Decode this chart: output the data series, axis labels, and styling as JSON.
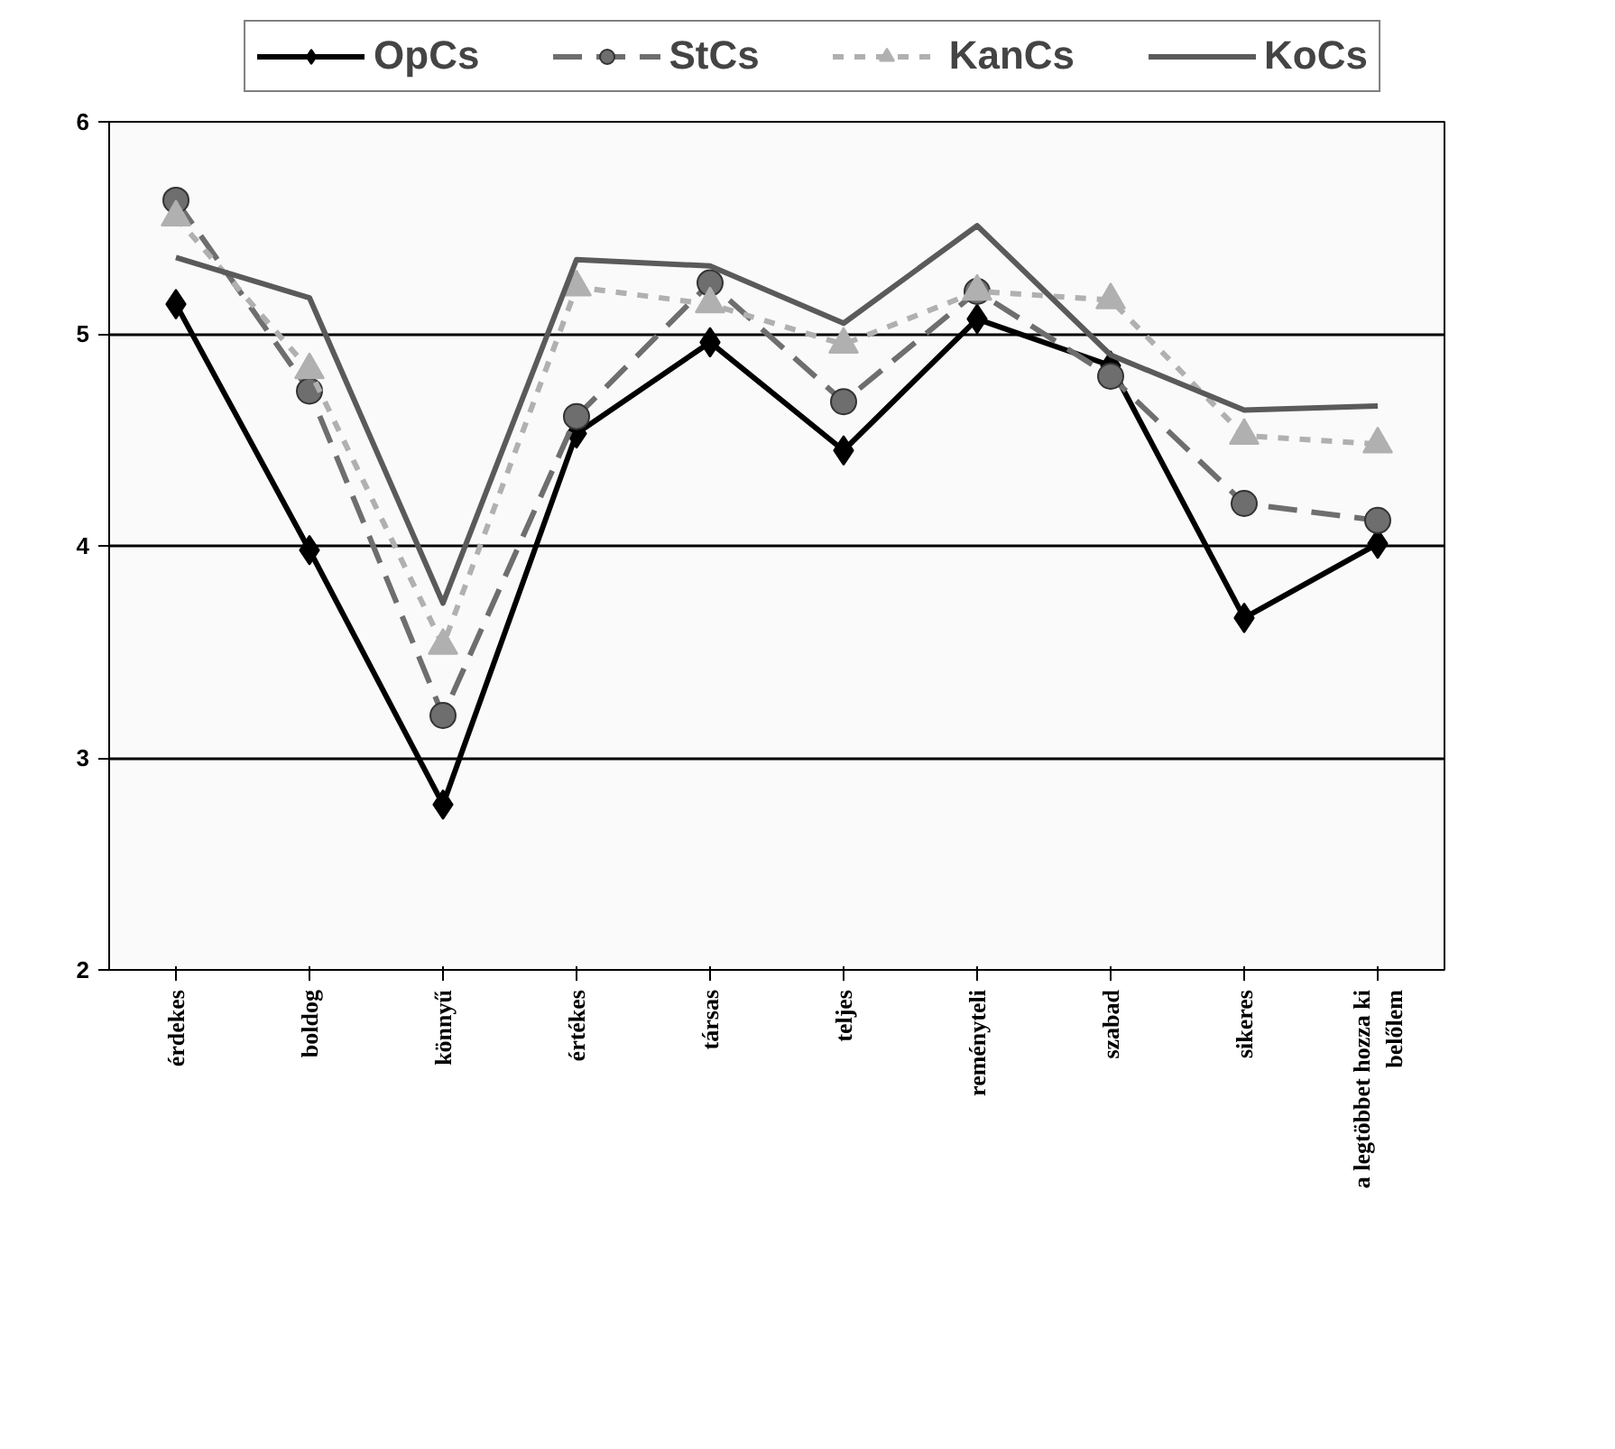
{
  "chart_data": {
    "type": "line",
    "categories": [
      "érdekes",
      "boldog",
      "könnyű",
      "értékes",
      "társas",
      "teljes",
      "reményteli",
      "szabad",
      "sikeres",
      "a legtöbbet hozza ki belőlem"
    ],
    "ylim": [
      2,
      6
    ],
    "yticks": [
      2,
      3,
      4,
      5,
      6
    ],
    "grid": "y",
    "legend": "top",
    "series": [
      {
        "name": "OpCs",
        "color": "#000000",
        "marker": "diamond",
        "line_style": "solid",
        "values": [
          5.14,
          3.98,
          2.78,
          4.53,
          4.96,
          4.45,
          5.07,
          4.85,
          3.66,
          4.01
        ]
      },
      {
        "name": "StCs",
        "color": "#6e6e6e",
        "marker": "circle",
        "line_style": "dashed",
        "values": [
          5.63,
          4.73,
          3.2,
          4.61,
          5.24,
          4.68,
          5.2,
          4.8,
          4.2,
          4.12
        ]
      },
      {
        "name": "KanCs",
        "color": "#b0b0b0",
        "marker": "triangle",
        "line_style": "dotted",
        "values": [
          5.55,
          4.83,
          3.53,
          5.22,
          5.14,
          4.95,
          5.2,
          5.16,
          4.52,
          4.48
        ]
      },
      {
        "name": "KoCs",
        "color": "#5a5a5a",
        "marker": "none",
        "line_style": "solid",
        "values": [
          5.36,
          5.17,
          3.73,
          5.35,
          5.32,
          5.05,
          5.51,
          4.9,
          4.64,
          4.66
        ]
      }
    ]
  }
}
